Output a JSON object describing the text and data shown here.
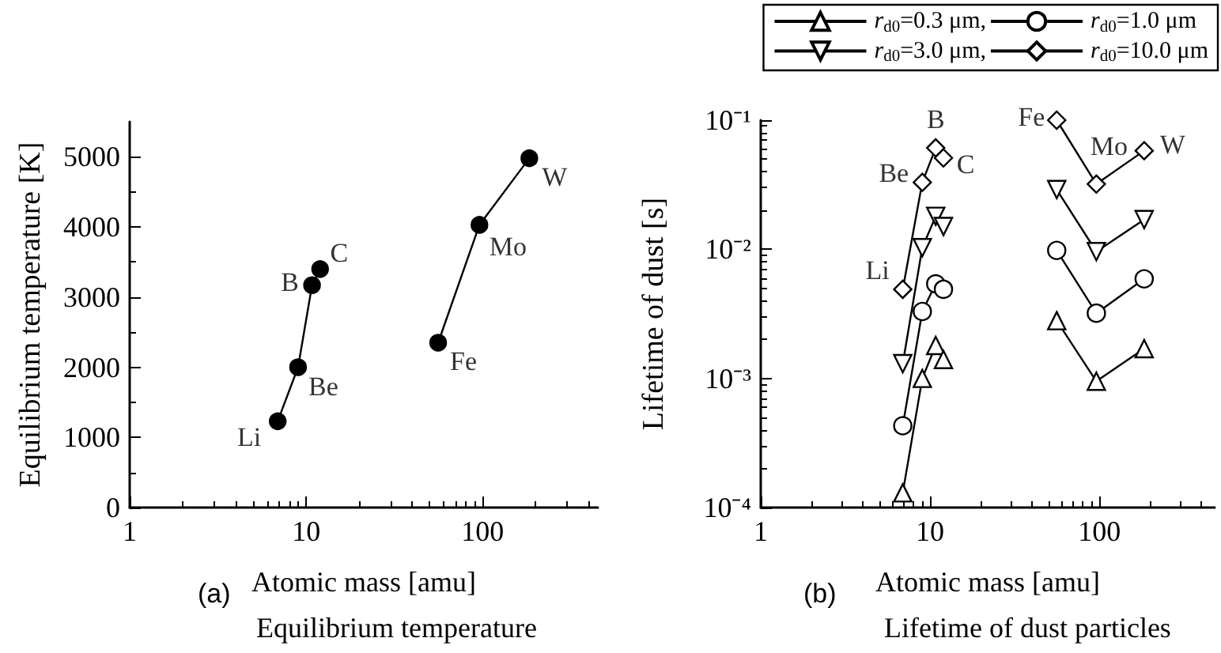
{
  "chart_data": [
    {
      "type": "line",
      "title": "Equilibrium temperature",
      "xlabel": "Atomic mass [amu]",
      "ylabel": "Equilibrium temperature [K]",
      "log": "x",
      "x": [
        6.9,
        9.0,
        10.8,
        12.0,
        30,
        56,
        96,
        184
      ],
      "series": [
        {
          "color": "#000000",
          "values": [
            1230,
            2000,
            3170,
            3400,
            null,
            2350,
            4030,
            4980
          ]
        }
      ],
      "marker": "circle",
      "xlim": [
        1,
        450
      ],
      "xticks": [
        1,
        10,
        100
      ],
      "ylim": [
        0,
        5500
      ],
      "yticks": [
        0,
        1000,
        2000,
        3000,
        4000,
        5000
      ],
      "grid": false,
      "legend": false,
      "annotations": [
        "(a)",
        {
          "text": "Li",
          "x": 6.9,
          "y": 1230
        },
        {
          "text": "Be",
          "x": 9.0,
          "y": 2000
        },
        {
          "text": "B",
          "x": 10.8,
          "y": 3170
        },
        {
          "text": "C",
          "x": 12.0,
          "y": 3400
        },
        {
          "text": "Fe",
          "x": 56,
          "y": 2350
        },
        {
          "text": "Mo",
          "x": 96,
          "y": 4030
        },
        {
          "text": "W",
          "x": 184,
          "y": 4980
        }
      ]
    },
    {
      "type": "line",
      "title": "Lifetime of dust particles",
      "xlabel": "Atomic mass [amu]",
      "ylabel": "Lifetime of dust [s]",
      "log": "xy",
      "x": [
        6.9,
        9.0,
        10.8,
        12.0,
        30,
        56,
        96,
        184
      ],
      "series": [
        {
          "name": "r$_{d0}$=0.3 μm,",
          "color": "#000000",
          "marker": "triangle",
          "values": [
            0.00013,
            0.001,
            0.0018,
            0.0014,
            null,
            0.0028,
            0.00095,
            0.0017
          ]
        },
        {
          "name": "r$_{d0}$=1.0 μm",
          "color": "#000000",
          "marker": "circle",
          "values": [
            0.00043,
            0.0033,
            0.0054,
            0.0049,
            null,
            0.0098,
            0.0032,
            0.0059
          ]
        },
        {
          "name": "r$_{d0}$=3.0 μm,",
          "color": "#000000",
          "marker": "triangle-down",
          "values": [
            0.0013,
            0.0103,
            0.018,
            0.015,
            null,
            0.029,
            0.0096,
            0.017
          ]
        },
        {
          "name": "r$_{d0}$=10.0 μm",
          "color": "#000000",
          "marker": "diamond",
          "values": [
            0.0049,
            0.033,
            0.061,
            0.051,
            null,
            0.1,
            0.032,
            0.058
          ]
        }
      ],
      "xlim": [
        1,
        480
      ],
      "xticks": [
        1,
        10,
        100
      ],
      "ylim": [
        0.0001,
        0.1
      ],
      "yticks": [
        {
          "value": 0.0001,
          "label": "10⁻⁴"
        },
        {
          "value": 0.001,
          "label": "10⁻³"
        },
        {
          "value": 0.01,
          "label": "10⁻²"
        },
        {
          "value": 0.1,
          "label": "10⁻¹"
        }
      ],
      "grid": false,
      "legend": "top right",
      "annotations": [
        "(b)",
        {
          "text": "Li",
          "x": 6.9,
          "y": 0.0049
        },
        {
          "text": "Be",
          "x": 9.0,
          "y": 0.033
        },
        {
          "text": "B",
          "x": 10.8,
          "y": 0.061
        },
        {
          "text": "C",
          "x": 12.0,
          "y": 0.051
        },
        {
          "text": "Fe",
          "x": 56,
          "y": 0.1
        },
        {
          "text": "Mo",
          "x": 96,
          "y": 0.032
        },
        {
          "text": "W",
          "x": 184,
          "y": 0.058
        }
      ]
    }
  ]
}
